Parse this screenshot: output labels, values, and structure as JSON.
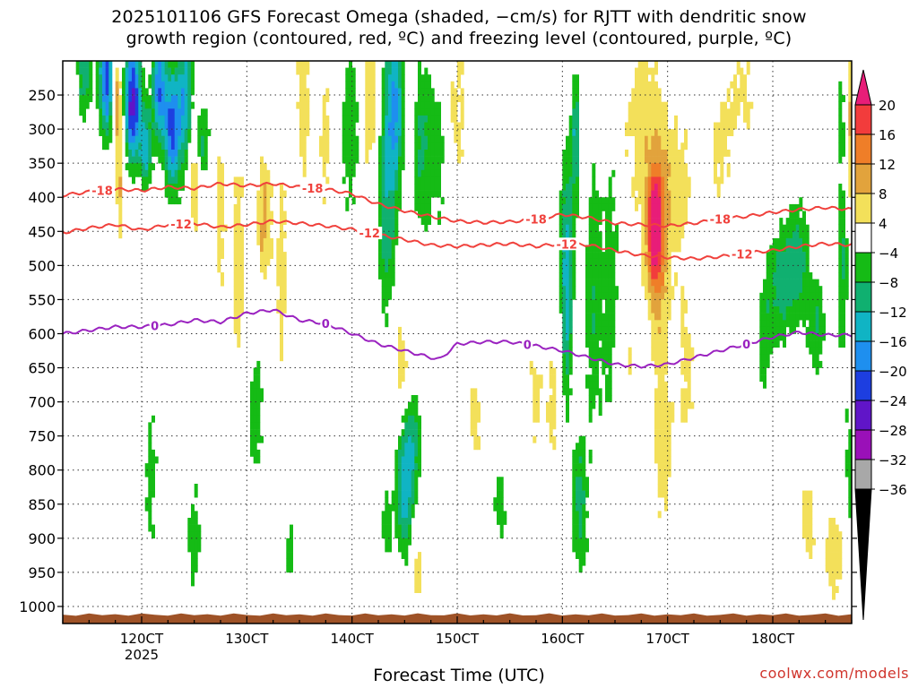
{
  "chart_data": {
    "type": "heatmap",
    "title_line1": "2025101106 GFS Forecast Omega (shaded, −cm/s) for RJTT with dendritic snow",
    "title_line2": "growth region (contoured, red, ºC) and freezing level (contoured, purple, ºC)",
    "xlabel": "Forecast Time (UTC)",
    "ylabel": "",
    "credit": "coolwx.com/models",
    "x_axis": {
      "unit": "hours since 2025-10-11 06UTC",
      "range": [
        0,
        180
      ],
      "ticks": [
        {
          "hour": 18,
          "label": "120CT",
          "sub": "2025"
        },
        {
          "hour": 42,
          "label": "130CT",
          "sub": ""
        },
        {
          "hour": 66,
          "label": "140CT",
          "sub": ""
        },
        {
          "hour": 90,
          "label": "150CT",
          "sub": ""
        },
        {
          "hour": 114,
          "label": "160CT",
          "sub": ""
        },
        {
          "hour": 138,
          "label": "170CT",
          "sub": ""
        },
        {
          "hour": 162,
          "label": "180CT",
          "sub": ""
        }
      ]
    },
    "y_axis": {
      "unit": "hPa",
      "range": [
        1025,
        200
      ],
      "ticks": [
        "250",
        "300",
        "350",
        "400",
        "450",
        "500",
        "550",
        "600",
        "650",
        "700",
        "750",
        "800",
        "850",
        "900",
        "950",
        "1000"
      ]
    },
    "colorbar": {
      "labels": [
        "20",
        "16",
        "12",
        "8",
        "4",
        "−4",
        "−8",
        "−12",
        "−16",
        "−20",
        "−24",
        "−28",
        "−32",
        "−36"
      ],
      "colors": [
        "#e81d78",
        "#f23c3c",
        "#ef7e28",
        "#e2a33c",
        "#f3e05a",
        "#ffffff",
        "#15bb15",
        "#10b070",
        "#10b4c4",
        "#1e8fef",
        "#1d3ee0",
        "#6015c8",
        "#9a10b8",
        "#a8a8a8",
        "#000000"
      ]
    },
    "contours": [
      {
        "name": "dendritic-top",
        "label": "-18",
        "color": "#f0413c",
        "points": [
          [
            0,
            397
          ],
          [
            6,
            392
          ],
          [
            12,
            388
          ],
          [
            18,
            390
          ],
          [
            24,
            385
          ],
          [
            30,
            387
          ],
          [
            36,
            380
          ],
          [
            42,
            383
          ],
          [
            48,
            380
          ],
          [
            54,
            385
          ],
          [
            60,
            388
          ],
          [
            66,
            395
          ],
          [
            72,
            410
          ],
          [
            78,
            420
          ],
          [
            84,
            428
          ],
          [
            90,
            435
          ],
          [
            96,
            437
          ],
          [
            102,
            436
          ],
          [
            108,
            432
          ],
          [
            114,
            425
          ],
          [
            120,
            430
          ],
          [
            126,
            438
          ],
          [
            132,
            440
          ],
          [
            138,
            442
          ],
          [
            144,
            438
          ],
          [
            150,
            432
          ],
          [
            156,
            428
          ],
          [
            162,
            422
          ],
          [
            168,
            418
          ],
          [
            174,
            415
          ],
          [
            180,
            418
          ]
        ],
        "labels_at": [
          9,
          57,
          108,
          150
        ]
      },
      {
        "name": "dendritic-bottom",
        "label": "-12",
        "color": "#f0413c",
        "points": [
          [
            0,
            452
          ],
          [
            6,
            445
          ],
          [
            12,
            440
          ],
          [
            18,
            448
          ],
          [
            24,
            440
          ],
          [
            30,
            438
          ],
          [
            36,
            444
          ],
          [
            42,
            440
          ],
          [
            48,
            435
          ],
          [
            54,
            438
          ],
          [
            60,
            442
          ],
          [
            66,
            447
          ],
          [
            72,
            455
          ],
          [
            78,
            462
          ],
          [
            84,
            470
          ],
          [
            90,
            472
          ],
          [
            96,
            470
          ],
          [
            102,
            468
          ],
          [
            108,
            472
          ],
          [
            114,
            468
          ],
          [
            120,
            470
          ],
          [
            126,
            478
          ],
          [
            132,
            485
          ],
          [
            138,
            488
          ],
          [
            144,
            490
          ],
          [
            150,
            487
          ],
          [
            156,
            482
          ],
          [
            162,
            478
          ],
          [
            168,
            472
          ],
          [
            174,
            468
          ],
          [
            180,
            470
          ]
        ],
        "labels_at": [
          27,
          70,
          115,
          155
        ]
      },
      {
        "name": "freezing-level",
        "label": "0",
        "color": "#9a22c0",
        "points": [
          [
            0,
            600
          ],
          [
            6,
            595
          ],
          [
            12,
            590
          ],
          [
            18,
            590
          ],
          [
            24,
            587
          ],
          [
            30,
            580
          ],
          [
            36,
            583
          ],
          [
            42,
            570
          ],
          [
            48,
            565
          ],
          [
            54,
            580
          ],
          [
            60,
            585
          ],
          [
            66,
            600
          ],
          [
            72,
            615
          ],
          [
            78,
            625
          ],
          [
            84,
            635
          ],
          [
            86,
            638
          ],
          [
            90,
            615
          ],
          [
            96,
            612
          ],
          [
            102,
            612
          ],
          [
            108,
            618
          ],
          [
            114,
            625
          ],
          [
            120,
            635
          ],
          [
            126,
            645
          ],
          [
            132,
            648
          ],
          [
            138,
            645
          ],
          [
            144,
            635
          ],
          [
            150,
            625
          ],
          [
            156,
            615
          ],
          [
            162,
            605
          ],
          [
            168,
            598
          ],
          [
            174,
            602
          ],
          [
            180,
            602
          ]
        ],
        "labels_at": [
          21,
          60,
          106,
          156
        ]
      }
    ],
    "shaded_features": [
      {
        "name": "strong-ascent-upper-early",
        "color_class": "-24",
        "hours": [
          6,
          36
        ],
        "pressure": [
          210,
          330
        ]
      },
      {
        "name": "ascent-midlevel-142",
        "color_class": "-16",
        "hours": [
          72,
          80
        ],
        "pressure": [
          260,
          500
        ]
      },
      {
        "name": "strong-ascent-1012",
        "color_class": "-20",
        "hours": [
          114,
          118
        ],
        "pressure": [
          400,
          680
        ]
      },
      {
        "name": "strong-descent-1618",
        "color_class": "16",
        "hours": [
          133,
          137
        ],
        "pressure": [
          400,
          500
        ]
      },
      {
        "name": "ascent-lowlevel-152",
        "color_class": "-20",
        "hours": [
          76,
          82
        ],
        "pressure": [
          760,
          900
        ]
      },
      {
        "name": "ascent-1912",
        "color_class": "-12",
        "hours": [
          158,
          170
        ],
        "pressure": [
          490,
          560
        ]
      }
    ],
    "terrain": {
      "name": "surface",
      "color": "#9e5227",
      "pressure_top": 1012
    }
  }
}
